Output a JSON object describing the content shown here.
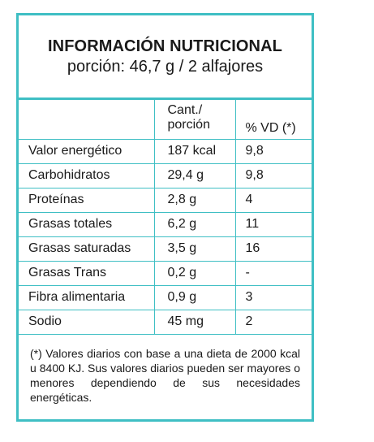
{
  "header": {
    "title": "INFORMACIÓN NUTRICIONAL",
    "subtitle": "porción: 46,7 g / 2 alfajores"
  },
  "table": {
    "headers": {
      "amount_line1": "Cant./",
      "amount_line2": "porción",
      "vd": "% VD (*)"
    },
    "rows": [
      {
        "name": "Valor energético",
        "amount": "187 kcal",
        "vd": "9,8"
      },
      {
        "name": "Carbohidratos",
        "amount": "29,4 g",
        "vd": "9,8"
      },
      {
        "name": "Proteínas",
        "amount": "2,8 g",
        "vd": "4"
      },
      {
        "name": "Grasas totales",
        "amount": "6,2 g",
        "vd": "11"
      },
      {
        "name": "Grasas saturadas",
        "amount": "3,5 g",
        "vd": "16"
      },
      {
        "name": "Grasas Trans",
        "amount": "0,2 g",
        "vd": "-"
      },
      {
        "name": "Fibra alimentaria",
        "amount": "0,9 g",
        "vd": "3"
      },
      {
        "name": "Sodio",
        "amount": "45 mg",
        "vd": "2"
      }
    ]
  },
  "footnote": "(*) Valores diarios con base a una dieta de 2000 kcal u 8400 KJ. Sus valores diarios pueden ser mayores o menores dependiendo de sus necesidades energéticas.",
  "colors": {
    "border": "#3fbfc4",
    "text": "#1a1a1a"
  }
}
